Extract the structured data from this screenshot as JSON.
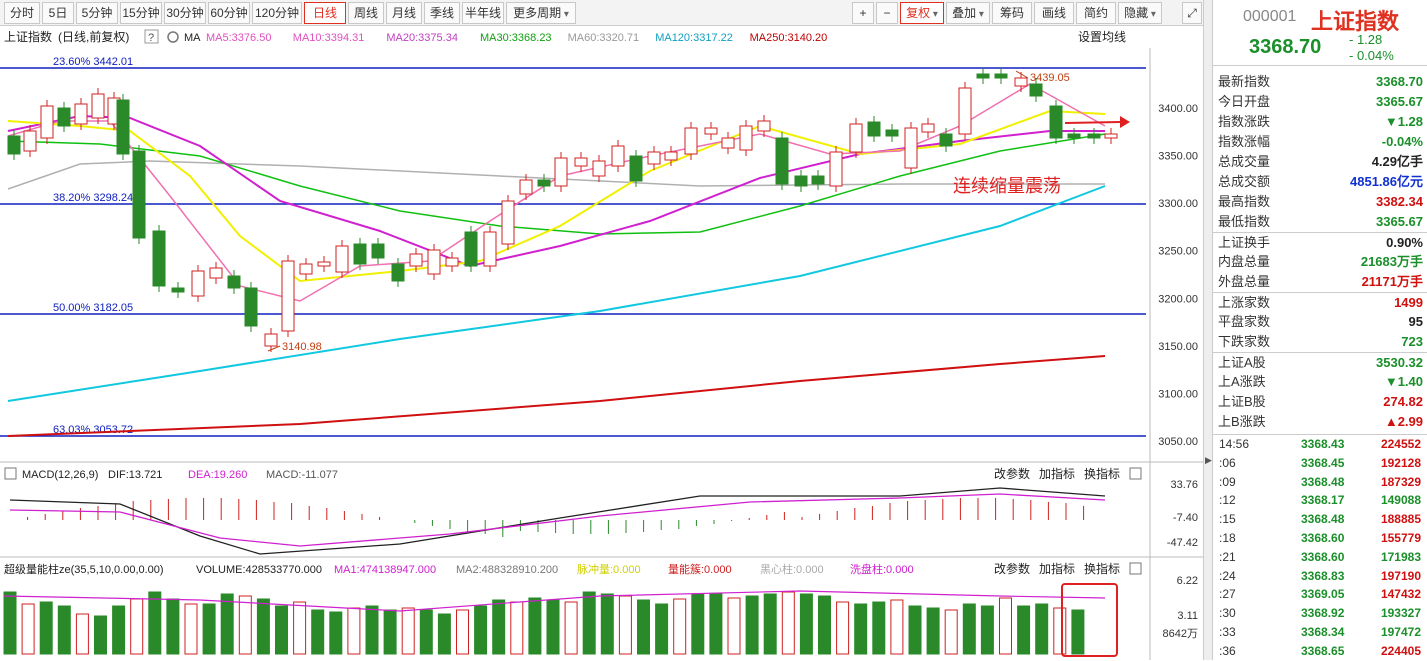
{
  "toolbar": {
    "periods": [
      "分时",
      "5日",
      "5分钟",
      "15分钟",
      "30分钟",
      "60分钟",
      "120分钟",
      "日线",
      "周线",
      "月线",
      "季线",
      "半年线",
      "更多周期"
    ],
    "active": "日线",
    "right": [
      "+",
      "−",
      "复权",
      "叠加",
      "筹码",
      "画线",
      "简约",
      "隐藏"
    ]
  },
  "chart": {
    "title": "上证指数",
    "subtitle": "(日线,前复权)",
    "help": "?",
    "ma_label": "MA",
    "settings": "设置均线",
    "ma_legend": [
      {
        "label": "MA5:3376.50",
        "color": "#e050c0"
      },
      {
        "label": "MA10:3394.31",
        "color": "#e050c0"
      },
      {
        "label": "MA20:3375.34",
        "color": "#c040c0"
      },
      {
        "label": "MA30:3368.23",
        "color": "#10a010"
      },
      {
        "label": "MA60:3320.71",
        "color": "#999999"
      },
      {
        "label": "MA120:3317.22",
        "color": "#10a0c0"
      },
      {
        "label": "MA250:3140.20",
        "color": "#c00000"
      }
    ],
    "fib": [
      {
        "label": "23.60% 3442.01"
      },
      {
        "label": "38.20% 3298.24"
      },
      {
        "label": "50.00% 3182.05"
      },
      {
        "label": "63.03% 3053.72"
      }
    ],
    "yticks": [
      "3400.00",
      "3350.00",
      "3300.00",
      "3250.00",
      "3200.00",
      "3150.00",
      "3100.00",
      "3050.00"
    ],
    "high_mark": "3439.05",
    "low_mark": "3140.98",
    "annotation": "连续缩量震荡"
  },
  "macd": {
    "title": "MACD(12,26,9)",
    "dif": "DIF:13.721",
    "dea": "DEA:19.260",
    "macd": "MACD:-11.077",
    "yticks": [
      "33.76",
      "-7.40",
      "-47.42"
    ],
    "buttons": [
      "改参数",
      "加指标",
      "换指标"
    ]
  },
  "vol": {
    "title": "超级量能柱ze(35,5,10,0.00,0.00)",
    "volume": "VOLUME:428533770.000",
    "ma1": "MA1:474138947.000",
    "ma2": "MA2:488328910.200",
    "mcl": "脉冲量:0.000",
    "lnx": "量能簇:0.000",
    "hxz": "黑心柱:0.000",
    "xpz": "洗盘柱:0.000",
    "yticks": [
      "6.22",
      "3.11",
      "8642万"
    ],
    "buttons": [
      "改参数",
      "加指标",
      "换指标"
    ]
  },
  "side": {
    "code": "000001",
    "name": "上证指数",
    "price": "3368.70",
    "change": "- 1.28",
    "pct": "- 0.04%",
    "rows": [
      {
        "k": "最新指数",
        "v": "3368.70",
        "c": "g"
      },
      {
        "k": "今日开盘",
        "v": "3365.67",
        "c": "g"
      },
      {
        "k": "指数涨跌",
        "v": "▼1.28",
        "c": "g"
      },
      {
        "k": "指数涨幅",
        "v": "-0.04%",
        "c": "g"
      },
      {
        "k": "总成交量",
        "v": "4.29亿手",
        "c": "k2"
      },
      {
        "k": "总成交额",
        "v": "4851.86亿元",
        "c": "b"
      },
      {
        "k": "最高指数",
        "v": "3382.34",
        "c": "r"
      },
      {
        "k": "最低指数",
        "v": "3365.67",
        "c": "g"
      },
      {
        "k": "上证换手",
        "v": "0.90%",
        "c": "k2",
        "sep": true
      },
      {
        "k": "内盘总量",
        "v": "21683万手",
        "c": "g"
      },
      {
        "k": "外盘总量",
        "v": "21171万手",
        "c": "r"
      },
      {
        "k": "上涨家数",
        "v": "1499",
        "c": "r",
        "sep": true
      },
      {
        "k": "平盘家数",
        "v": "95",
        "c": "k2"
      },
      {
        "k": "下跌家数",
        "v": "723",
        "c": "g"
      },
      {
        "k": "上证A股",
        "v": "3530.32",
        "c": "g",
        "sep": true
      },
      {
        "k": "上A涨跌",
        "v": "▼1.40",
        "c": "g"
      },
      {
        "k": "上证B股",
        "v": "274.82",
        "c": "r"
      },
      {
        "k": "上B涨跌",
        "v": "▲2.99",
        "c": "r"
      }
    ],
    "ticks": [
      {
        "t": "14:56",
        "p": "3368.43",
        "pc": "g",
        "q": "224552",
        "qc": "r"
      },
      {
        "t": ":06",
        "p": "3368.45",
        "pc": "g",
        "q": "192128",
        "qc": "r"
      },
      {
        "t": ":09",
        "p": "3368.48",
        "pc": "g",
        "q": "187329",
        "qc": "r"
      },
      {
        "t": ":12",
        "p": "3368.17",
        "pc": "g",
        "q": "149088",
        "qc": "g"
      },
      {
        "t": ":15",
        "p": "3368.48",
        "pc": "g",
        "q": "188885",
        "qc": "r"
      },
      {
        "t": ":18",
        "p": "3368.60",
        "pc": "g",
        "q": "155779",
        "qc": "r"
      },
      {
        "t": ":21",
        "p": "3368.60",
        "pc": "g",
        "q": "171983",
        "qc": "g"
      },
      {
        "t": ":24",
        "p": "3368.83",
        "pc": "g",
        "q": "197190",
        "qc": "r"
      },
      {
        "t": ":27",
        "p": "3369.05",
        "pc": "g",
        "q": "147432",
        "qc": "r"
      },
      {
        "t": ":30",
        "p": "3368.92",
        "pc": "g",
        "q": "193327",
        "qc": "g"
      },
      {
        "t": ":33",
        "p": "3368.34",
        "pc": "g",
        "q": "197472",
        "qc": "g"
      },
      {
        "t": ":36",
        "p": "3368.65",
        "pc": "g",
        "q": "224405",
        "qc": "r"
      }
    ]
  }
}
